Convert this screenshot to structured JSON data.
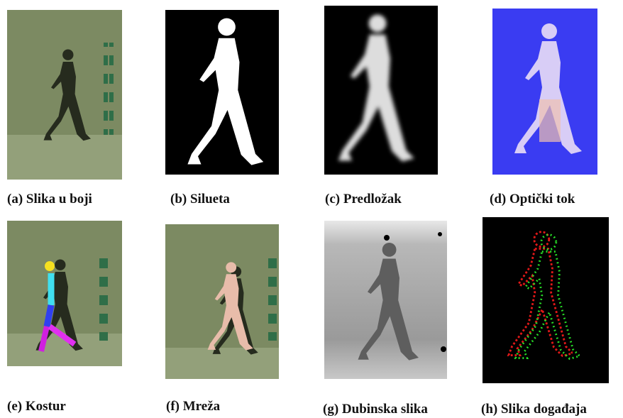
{
  "panels": [
    {
      "caption": "(a) Slika u boji"
    },
    {
      "caption": "(b) Silueta"
    },
    {
      "caption": "(c) Predložak"
    },
    {
      "caption": "(d) Optički tok"
    },
    {
      "caption": "(e) Kostur"
    },
    {
      "caption": "(f) Mreža"
    },
    {
      "caption": "(g) Dubinska slika"
    },
    {
      "caption": "(h) Slika događaja"
    }
  ]
}
